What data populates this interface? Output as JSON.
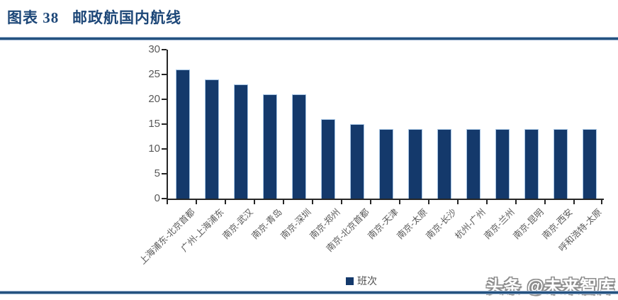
{
  "header": {
    "title": "图表 38   邮政航国内航线"
  },
  "chart_data": {
    "type": "bar",
    "title": "邮政航国内航线",
    "categories": [
      "上海浦东-北京首都",
      "广州-上海浦东",
      "南京-武汉",
      "南京-青岛",
      "南京-深圳",
      "南京-郑州",
      "南京-北京首都",
      "南京-天津",
      "南京-太原",
      "南京-长沙",
      "杭州-广州",
      "南京-兰州",
      "南京-昆明",
      "南京-西安",
      "呼和浩特-太原"
    ],
    "series": [
      {
        "name": "班次",
        "values": [
          26,
          24,
          23,
          21,
          21,
          16,
          15,
          14,
          14,
          14,
          14,
          14,
          14,
          14,
          14
        ]
      }
    ],
    "xlabel": "",
    "ylabel": "",
    "ylim": [
      0,
      30
    ],
    "yticks": [
      0,
      5,
      10,
      15,
      20,
      25,
      30
    ],
    "grid": false,
    "legend_position": "bottom"
  },
  "watermark": {
    "text": "头条 @未来智库"
  },
  "colors": {
    "title_navy": "#1d4778",
    "divider_navy": "#24527f",
    "divider_light": "#9fb6d2",
    "bar_fill": "#14396b",
    "bar_border": "#a5c4e4",
    "axis": "#262626",
    "tick_label_gray": "#595959",
    "legend_label_gray": "#4d4d4d"
  }
}
